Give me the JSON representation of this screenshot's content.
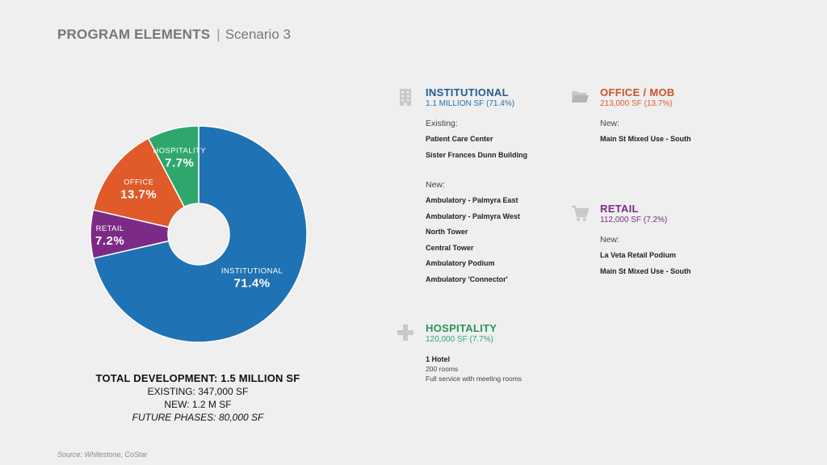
{
  "header": {
    "title": "PROGRAM ELEMENTS",
    "separator": "|",
    "subtitle": "Scenario 3"
  },
  "colors": {
    "institutional": "#1f72b3",
    "office": "#e05a2a",
    "retail": "#7b2b86",
    "hospitality": "#2ea76c",
    "icon": "#c9c9c9"
  },
  "chart_data": {
    "type": "pie",
    "style": "donut",
    "title": "",
    "slices": [
      {
        "name": "INSTITUTIONAL",
        "value": 71.4,
        "label": "71.4%",
        "color": "#1f72b3"
      },
      {
        "name": "RETAIL",
        "value": 7.2,
        "label": "7.2%",
        "color": "#7b2b86"
      },
      {
        "name": "OFFICE",
        "value": 13.7,
        "label": "13.7%",
        "color": "#e05a2a"
      },
      {
        "name": "HOSPITALITY",
        "value": 7.7,
        "label": "7.7%",
        "color": "#2ea76c"
      }
    ]
  },
  "totals": {
    "main": "TOTAL DEVELOPMENT: 1.5 MILLION SF",
    "existing": "EXISTING: 347,000 SF",
    "new": "NEW: 1.2 M SF",
    "future": "FUTURE PHASES: 80,000 SF"
  },
  "source": "Source: Whitestone, CoStar",
  "sections": {
    "institutional": {
      "icon": "building-icon",
      "title": "INSTITUTIONAL",
      "subtitle": "1.1 MILLION SF (71.4%)",
      "existing_label": "Existing:",
      "existing_items": [
        "Patient Care Center",
        "Sister Frances Dunn Building"
      ],
      "new_label": "New:",
      "new_items": [
        "Ambulatory - Palmyra East",
        "Ambulatory - Palmyra West",
        "North Tower",
        "Central Tower",
        "Ambulatory Podium",
        "Ambulatory 'Connector'"
      ]
    },
    "office": {
      "icon": "folder-icon",
      "title": "OFFICE / MOB",
      "subtitle": "213,000 SF (13.7%)",
      "new_label": "New:",
      "new_items": [
        "Main St Mixed Use - South"
      ]
    },
    "retail": {
      "icon": "cart-icon",
      "title": "RETAIL",
      "subtitle": "112,000 SF (7.2%)",
      "new_label": "New:",
      "new_items": [
        "La Veta Retail Podium",
        "Main St Mixed Use - South"
      ]
    },
    "hospitality": {
      "icon": "cross-icon",
      "title": "HOSPITALITY",
      "subtitle": "120,000 SF (7.7%)",
      "hotel_title": "1 Hotel",
      "hotel_lines": [
        "200 rooms",
        "Full service with meeting rooms"
      ]
    }
  }
}
